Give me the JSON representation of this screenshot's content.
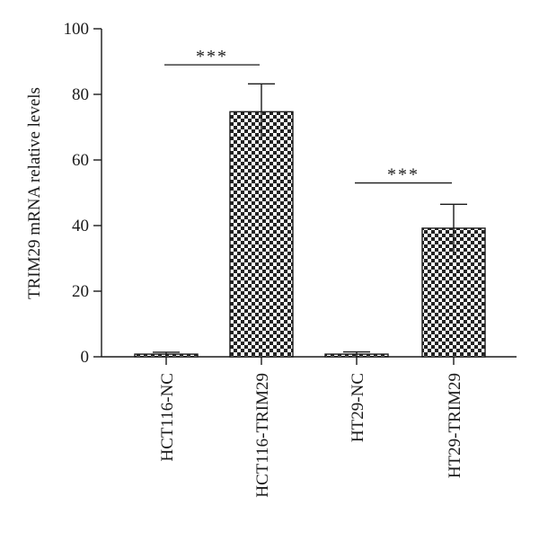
{
  "chart_data": {
    "type": "bar",
    "title": "",
    "xlabel": "",
    "ylabel": "TRIM29 mRNA relative levels",
    "ylim": [
      0,
      100
    ],
    "yticks": [
      "0",
      "20",
      "40",
      "60",
      "80",
      "100"
    ],
    "categories": [
      "HCT116-NC",
      "HCT116-TRIM29",
      "HT29-NC",
      "HT29-TRIM29"
    ],
    "values": [
      0.8,
      74.7,
      0.8,
      39.2
    ],
    "errors": [
      0.6,
      8.5,
      0.7,
      7.3
    ],
    "significance": [
      {
        "from": 0,
        "to": 1,
        "label": "***",
        "y": 89
      },
      {
        "from": 2,
        "to": 3,
        "label": "***",
        "y": 53
      }
    ],
    "bar_fill": "checkerboard",
    "colors": {
      "ink": "#1a1a1a",
      "checker_dark": "#222222",
      "checker_light": "#ffffff"
    }
  }
}
